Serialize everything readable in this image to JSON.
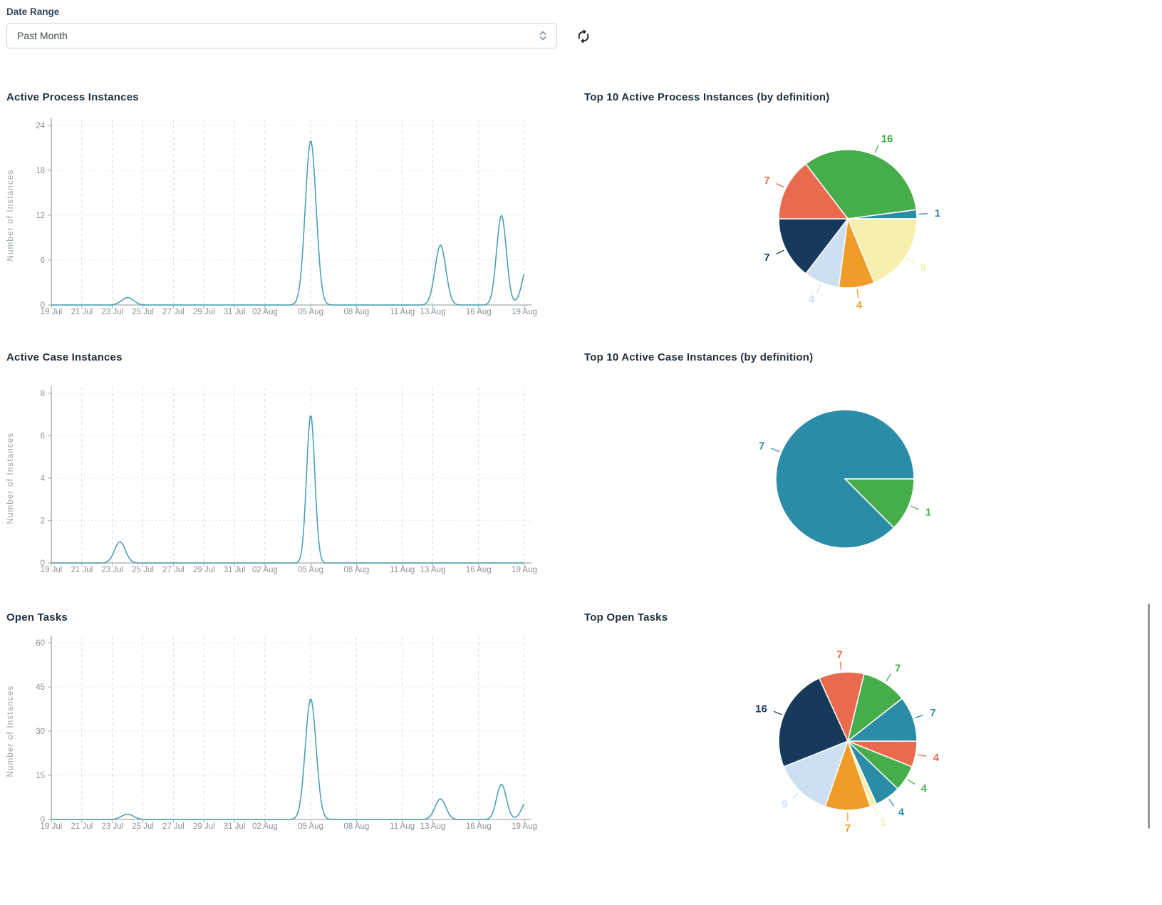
{
  "header": {
    "date_range_label": "Date Range",
    "date_range_value": "Past Month"
  },
  "icons": {
    "refresh": "refresh-icon",
    "date_range_stepper": "updown-stepper-icon"
  },
  "palette": {
    "green": "#45ad49",
    "teal": "#2b8ca8",
    "yellow": "#f6efae",
    "orange": "#ef9c28",
    "light_blue": "#cde0f1",
    "navy": "#173a5c",
    "red": "#e96a4d",
    "line": "#4aa1b5",
    "axis": "#b3b8bd",
    "grid": "#dcdcdc",
    "tick_text": "#8a9199",
    "axis_label": "#9aa1a8",
    "title_text": "#22313f"
  },
  "chart_data": [
    {
      "type": "line",
      "title": "Active Process Instances",
      "ylabel": "Number of Instances",
      "ylim": [
        0,
        24
      ],
      "yticks": [
        0,
        6,
        12,
        18,
        24
      ],
      "grid": true,
      "legend": "none",
      "x_ticks": [
        {
          "label": "19 Jul",
          "day": 0
        },
        {
          "label": "21 Jul",
          "day": 2
        },
        {
          "label": "23 Jul",
          "day": 4
        },
        {
          "label": "25 Jul",
          "day": 6
        },
        {
          "label": "27 Jul",
          "day": 8
        },
        {
          "label": "29 Jul",
          "day": 10
        },
        {
          "label": "31 Jul",
          "day": 12
        },
        {
          "label": "02 Aug",
          "day": 14
        },
        {
          "label": "05 Aug",
          "day": 17
        },
        {
          "label": "08 Aug",
          "day": 20
        },
        {
          "label": "11 Aug",
          "day": 23
        },
        {
          "label": "13 Aug",
          "day": 25
        },
        {
          "label": "16 Aug",
          "day": 28
        },
        {
          "label": "19 Aug",
          "day": 31
        }
      ],
      "series_color": "line",
      "peaks": [
        {
          "date": "24 Jul",
          "value": 1
        },
        {
          "date": "05 Aug",
          "value": 22
        },
        {
          "date": "14 Aug",
          "value": 8
        },
        {
          "date": "17 Aug",
          "value": 12
        },
        {
          "date": "19 Aug",
          "value": 5
        }
      ],
      "bumps": [
        [
          5,
          1,
          0.55
        ],
        [
          17,
          22,
          0.5
        ],
        [
          25.5,
          8,
          0.5
        ],
        [
          29.5,
          12,
          0.45
        ],
        [
          31.4,
          7,
          0.6
        ]
      ]
    },
    {
      "type": "pie",
      "title": "Top 10 Active Process Instances (by definition)",
      "start_angle": -37.5,
      "slices": [
        {
          "value": 16,
          "color": "green"
        },
        {
          "value": 1,
          "color": "teal"
        },
        {
          "value": 9,
          "color": "yellow"
        },
        {
          "value": 4,
          "color": "orange"
        },
        {
          "value": 4,
          "color": "light_blue"
        },
        {
          "value": 7,
          "color": "navy"
        },
        {
          "value": 7,
          "color": "red"
        }
      ]
    },
    {
      "type": "line",
      "title": "Active Case Instances",
      "ylabel": "Number of Instances",
      "ylim": [
        0,
        8
      ],
      "yticks": [
        0,
        2,
        4,
        6,
        8
      ],
      "grid": true,
      "legend": "none",
      "x_ticks": [
        {
          "label": "19 Jul",
          "day": 0
        },
        {
          "label": "21 Jul",
          "day": 2
        },
        {
          "label": "23 Jul",
          "day": 4
        },
        {
          "label": "25 Jul",
          "day": 6
        },
        {
          "label": "27 Jul",
          "day": 8
        },
        {
          "label": "29 Jul",
          "day": 10
        },
        {
          "label": "31 Jul",
          "day": 12
        },
        {
          "label": "02 Aug",
          "day": 14
        },
        {
          "label": "05 Aug",
          "day": 17
        },
        {
          "label": "08 Aug",
          "day": 20
        },
        {
          "label": "11 Aug",
          "day": 23
        },
        {
          "label": "13 Aug",
          "day": 25
        },
        {
          "label": "16 Aug",
          "day": 28
        },
        {
          "label": "19 Aug",
          "day": 31
        }
      ],
      "series_color": "line",
      "peaks": [
        {
          "date": "24 Jul",
          "value": 1
        },
        {
          "date": "05 Aug",
          "value": 7
        }
      ],
      "bumps": [
        [
          4.5,
          1,
          0.5
        ],
        [
          17,
          7,
          0.38
        ]
      ]
    },
    {
      "type": "pie",
      "title": "Top 10 Active Case Instances (by definition)",
      "start_angle": 90,
      "slices": [
        {
          "value": 1,
          "color": "green"
        },
        {
          "value": 7,
          "color": "teal"
        }
      ]
    },
    {
      "type": "line",
      "title": "Open Tasks",
      "ylabel": "Number of Instances",
      "ylim": [
        0,
        60
      ],
      "yticks": [
        0,
        15,
        30,
        45,
        60
      ],
      "grid": true,
      "legend": "none",
      "x_ticks": [
        {
          "label": "19 Jul",
          "day": 0
        },
        {
          "label": "21 Jul",
          "day": 2
        },
        {
          "label": "23 Jul",
          "day": 4
        },
        {
          "label": "25 Jul",
          "day": 6
        },
        {
          "label": "27 Jul",
          "day": 8
        },
        {
          "label": "29 Jul",
          "day": 10
        },
        {
          "label": "31 Jul",
          "day": 12
        },
        {
          "label": "02 Aug",
          "day": 14
        },
        {
          "label": "05 Aug",
          "day": 17
        },
        {
          "label": "08 Aug",
          "day": 20
        },
        {
          "label": "11 Aug",
          "day": 23
        },
        {
          "label": "13 Aug",
          "day": 25
        },
        {
          "label": "16 Aug",
          "day": 28
        },
        {
          "label": "19 Aug",
          "day": 31
        }
      ],
      "series_color": "line",
      "peaks": [
        {
          "date": "24 Jul",
          "value": 2
        },
        {
          "date": "05 Aug",
          "value": 41
        },
        {
          "date": "14 Aug",
          "value": 7
        },
        {
          "date": "17 Aug",
          "value": 12
        },
        {
          "date": "19 Aug",
          "value": 6
        }
      ],
      "bumps": [
        [
          5,
          1.8,
          0.55
        ],
        [
          17,
          41,
          0.5
        ],
        [
          25.5,
          7,
          0.5
        ],
        [
          29.5,
          12,
          0.45
        ],
        [
          31.4,
          9,
          0.6
        ]
      ]
    },
    {
      "type": "pie",
      "title": "Top Open Tasks",
      "start_angle": -24.5,
      "slices": [
        {
          "value": 7,
          "color": "red"
        },
        {
          "value": 7,
          "color": "green"
        },
        {
          "value": 7,
          "color": "teal"
        },
        {
          "value": 4,
          "color": "red"
        },
        {
          "value": 4,
          "color": "green"
        },
        {
          "value": 4,
          "color": "teal"
        },
        {
          "value": 1,
          "color": "yellow"
        },
        {
          "value": 7,
          "color": "orange"
        },
        {
          "value": 9,
          "color": "light_blue"
        },
        {
          "value": 16,
          "color": "navy"
        }
      ]
    }
  ]
}
